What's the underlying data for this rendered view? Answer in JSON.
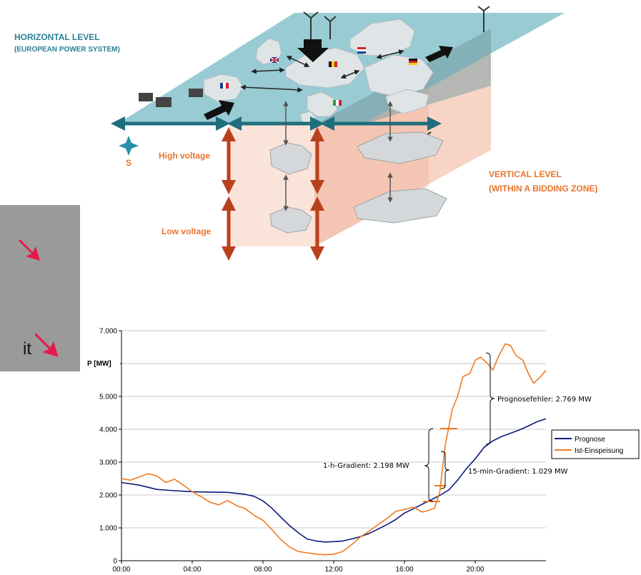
{
  "diagram": {
    "horizontal_title": "HORIZONTAL LEVEL",
    "horizontal_subtitle": "(EUROPEAN POWER SYSTEM)",
    "vertical_title": "VERTICAL LEVEL",
    "vertical_subtitle": "(WITHIN A BIDDING ZONE)",
    "high_voltage": "High voltage",
    "low_voltage": "Low voltage",
    "compass_letter": "S",
    "side_text": "it",
    "colors": {
      "plane_top": "#8fc7cf",
      "plane_side": "#f6c5b3",
      "arrow_teal": "#1f6e7e",
      "arrow_orange": "#b8411d",
      "label_blue": "#2a7f94",
      "label_orange": "#e8742c",
      "red_arrow": "#e6194b",
      "grey_panel": "#9a9a9a"
    }
  },
  "chart_data": {
    "type": "line",
    "ylabel": "P [MW]",
    "ylim": [
      0,
      7000
    ],
    "xlim": [
      0,
      24
    ],
    "y_ticks": [
      "0",
      "1.000",
      "2.000",
      "3.000",
      "4.000",
      "5.000",
      "6.000",
      "7.000"
    ],
    "x_ticks": [
      "00:00",
      "04:00",
      "08:00",
      "12:00",
      "16:00",
      "20:00"
    ],
    "grid": true,
    "legend_position": "right",
    "series": [
      {
        "name": "Prognose",
        "color": "#0a1a7a",
        "x": [
          0,
          1,
          2,
          3,
          4,
          5,
          6,
          6.5,
          7,
          7.5,
          8,
          8.5,
          9,
          9.5,
          10,
          10.5,
          11,
          11.5,
          12,
          12.5,
          13,
          13.5,
          14,
          14.5,
          15,
          15.5,
          16,
          16.5,
          17,
          17.5,
          18,
          18.5,
          19,
          19.5,
          20,
          20.5,
          21,
          21.5,
          22,
          22.5,
          23,
          23.5,
          24
        ],
        "values": [
          2380,
          2300,
          2170,
          2130,
          2100,
          2090,
          2080,
          2050,
          2020,
          1960,
          1820,
          1600,
          1330,
          1070,
          850,
          660,
          600,
          570,
          580,
          600,
          660,
          730,
          830,
          960,
          1100,
          1250,
          1450,
          1580,
          1720,
          1850,
          1990,
          2150,
          2450,
          2800,
          3100,
          3450,
          3650,
          3780,
          3880,
          3980,
          4100,
          4230,
          4320
        ]
      },
      {
        "name": "Ist-Einspeisung",
        "color": "#f07a20",
        "x": [
          0,
          0.5,
          1,
          1.5,
          2,
          2.5,
          3,
          3.5,
          4,
          4.5,
          5,
          5.5,
          6,
          6.5,
          7,
          7.5,
          8,
          8.5,
          9,
          9.5,
          10,
          10.5,
          11,
          11.5,
          12,
          12.5,
          13,
          13.5,
          14,
          14.5,
          15,
          15.5,
          16,
          16.5,
          17,
          17.3,
          17.7,
          18,
          18.3,
          18.7,
          19,
          19.3,
          19.7,
          20,
          20.3,
          20.7,
          21,
          21.3,
          21.7,
          22,
          22.3,
          22.7,
          23,
          23.3,
          23.7,
          24
        ],
        "values": [
          2500,
          2450,
          2550,
          2650,
          2580,
          2380,
          2480,
          2300,
          2100,
          1950,
          1780,
          1700,
          1830,
          1680,
          1580,
          1380,
          1230,
          950,
          650,
          420,
          280,
          240,
          200,
          180,
          200,
          280,
          480,
          720,
          900,
          1100,
          1280,
          1500,
          1560,
          1630,
          1480,
          1520,
          1600,
          2100,
          3500,
          4600,
          5000,
          5600,
          5700,
          6100,
          6200,
          6000,
          5800,
          6200,
          6600,
          6550,
          6250,
          6100,
          5700,
          5400,
          5600,
          5800
        ]
      }
    ],
    "annotations": [
      {
        "text": "Prognosefehler: 2.769 MW"
      },
      {
        "text": "1-h-Gradient: 2.198 MW"
      },
      {
        "text": "15-min-Gradient: 1.029 MW"
      }
    ]
  }
}
